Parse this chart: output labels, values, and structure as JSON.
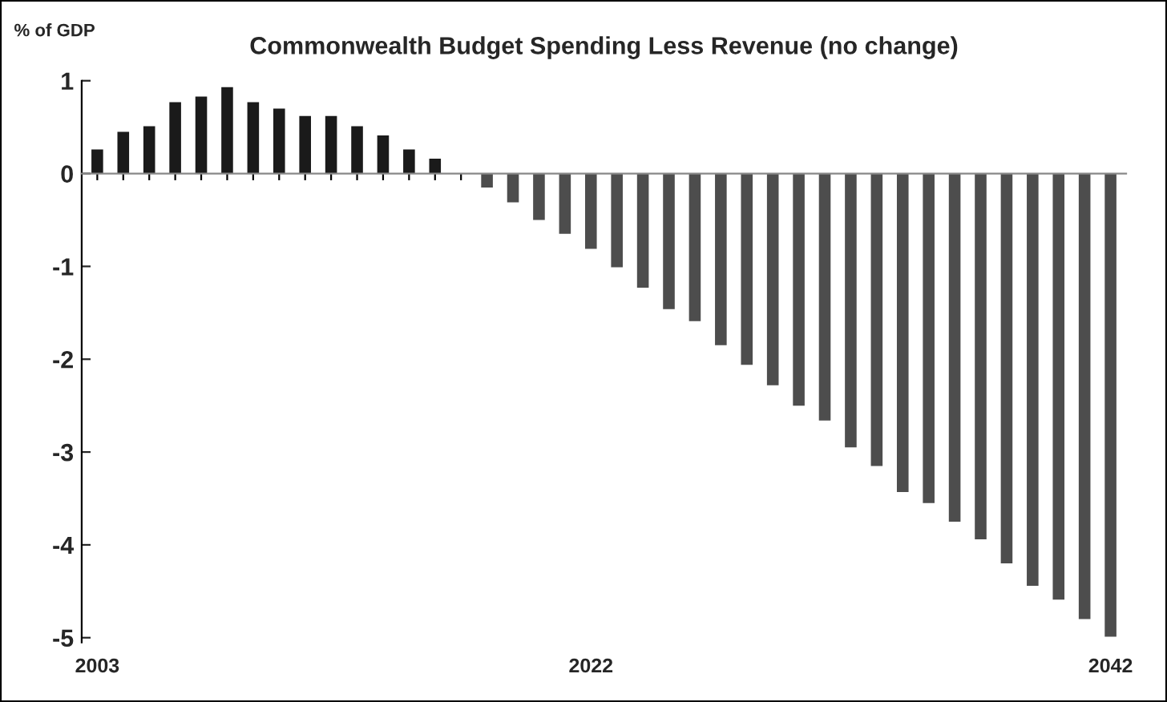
{
  "chart_data": {
    "type": "bar",
    "title": "Commonwealth Budget Spending Less Revenue (no change)",
    "ylabel": "% of GDP",
    "categories": [
      "2003",
      null,
      null,
      null,
      null,
      null,
      null,
      null,
      null,
      null,
      null,
      null,
      null,
      null,
      null,
      null,
      null,
      null,
      null,
      "2022",
      null,
      null,
      null,
      null,
      null,
      null,
      null,
      null,
      null,
      null,
      null,
      null,
      null,
      null,
      null,
      null,
      null,
      null,
      null,
      "2042"
    ],
    "values": [
      0.26,
      0.45,
      0.51,
      0.77,
      0.83,
      0.93,
      0.77,
      0.7,
      0.62,
      0.62,
      0.51,
      0.41,
      0.26,
      0.16,
      0,
      -0.15,
      -0.31,
      -0.5,
      -0.65,
      -0.81,
      -1.01,
      -1.23,
      -1.46,
      -1.59,
      -1.85,
      -2.06,
      -2.28,
      -2.5,
      -2.66,
      -2.95,
      -3.15,
      -3.43,
      -3.55,
      -3.75,
      -3.94,
      -4.2,
      -4.44,
      -4.59,
      -4.8,
      -4.99
    ],
    "colors": [
      "#1a1a1a",
      "#1a1a1a",
      "#1a1a1a",
      "#1a1a1a",
      "#1a1a1a",
      "#1a1a1a",
      "#1a1a1a",
      "#1a1a1a",
      "#1a1a1a",
      "#1a1a1a",
      "#1a1a1a",
      "#1a1a1a",
      "#1a1a1a",
      "#1a1a1a",
      "#4d4d4d",
      "#4d4d4d",
      "#4d4d4d",
      "#4d4d4d",
      "#4d4d4d",
      "#4d4d4d",
      "#4d4d4d",
      "#4d4d4d",
      "#4d4d4d",
      "#4d4d4d",
      "#4d4d4d",
      "#4d4d4d",
      "#4d4d4d",
      "#4d4d4d",
      "#4d4d4d",
      "#4d4d4d",
      "#4d4d4d",
      "#4d4d4d",
      "#4d4d4d",
      "#4d4d4d",
      "#4d4d4d",
      "#4d4d4d",
      "#4d4d4d",
      "#4d4d4d",
      "#4d4d4d",
      "#4d4d4d"
    ],
    "ylim": [
      -5.05,
      1
    ],
    "yticks": [
      -5,
      -4,
      -3,
      -2,
      -1,
      0,
      1
    ],
    "legend": false
  }
}
